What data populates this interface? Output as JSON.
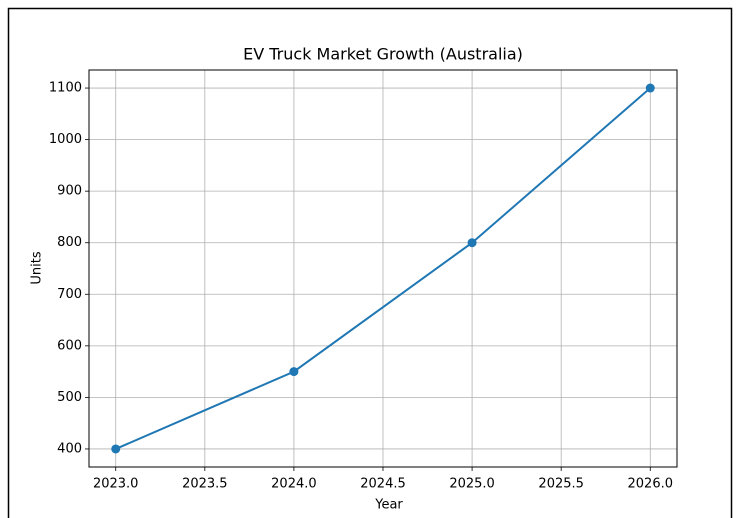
{
  "chart_data": {
    "type": "line",
    "title": "EV Truck Market Growth (Australia)",
    "x_label": "Year",
    "y_label": "Units",
    "x": [
      2023,
      2024,
      2025,
      2026
    ],
    "series": [
      {
        "name": "Units",
        "color": "#1f77b4",
        "values": [
          400,
          550,
          800,
          1100
        ]
      }
    ],
    "xlim": [
      2022.85,
      2026.15
    ],
    "xticks": [
      {
        "value": 2023,
        "label": "2023.0"
      },
      {
        "value": 2023.5,
        "label": "2023.5"
      },
      {
        "value": 2024,
        "label": "2024.0"
      },
      {
        "value": 2024.5,
        "label": "2024.5"
      },
      {
        "value": 2025,
        "label": "2025.0"
      },
      {
        "value": 2025.5,
        "label": "2025.5"
      },
      {
        "value": 2026,
        "label": "2026.0"
      }
    ],
    "ylim": [
      365,
      1135
    ],
    "yticks": [
      400,
      500,
      600,
      700,
      800,
      900,
      1000,
      1100
    ],
    "grid": true
  }
}
